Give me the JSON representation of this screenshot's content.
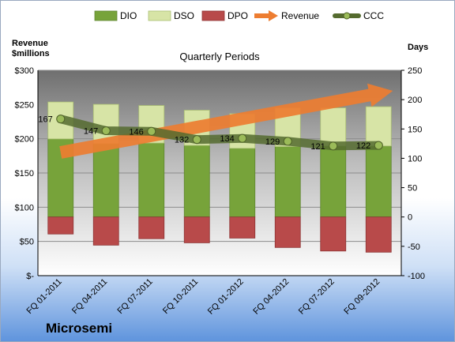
{
  "chart_data": {
    "type": "bar",
    "subtitle": "Quarterly Periods",
    "company": "Microsemi",
    "left_axis_title": [
      "Revenue",
      "$millions"
    ],
    "right_axis_title": "Days",
    "left_ticks": [
      "$-",
      "$50",
      "$100",
      "$150",
      "$200",
      "$250",
      "$300"
    ],
    "right_ticks": [
      "-100",
      "-50",
      "0",
      "50",
      "100",
      "150",
      "200",
      "250"
    ],
    "left_ylim": [
      0,
      300
    ],
    "right_ylim": [
      -100,
      250
    ],
    "categories": [
      "FQ 01-2011",
      "FQ 04-2011",
      "FQ 07-2011",
      "FQ 10-2011",
      "FQ 01-2012",
      "FQ 04-2012",
      "FQ 07-2012",
      "FQ 09-2012"
    ],
    "legend": [
      {
        "name": "DIO",
        "kind": "bar",
        "color": "#77a33a"
      },
      {
        "name": "DSO",
        "kind": "bar",
        "color": "#d7e4a6"
      },
      {
        "name": "DPO",
        "kind": "bar",
        "color": "#b84a4a"
      },
      {
        "name": "Revenue",
        "kind": "arrow",
        "color": "#ed7d31"
      },
      {
        "name": "CCC",
        "kind": "line",
        "color": "#556b2f"
      }
    ],
    "series": [
      {
        "name": "DIO",
        "axis": "right",
        "values": [
          133,
          125,
          126,
          122,
          117,
          120,
          121,
          121
        ]
      },
      {
        "name": "DSO",
        "axis": "right",
        "values": [
          63,
          67,
          64,
          60,
          59,
          66,
          65,
          67
        ]
      },
      {
        "name": "DPO",
        "axis": "right",
        "values": [
          -29,
          -48,
          -37,
          -44,
          -36,
          -52,
          -58,
          -60
        ]
      },
      {
        "name": "Revenue",
        "axis": "left",
        "start": 180,
        "end": 270
      },
      {
        "name": "CCC",
        "axis": "right",
        "values": [
          167,
          147,
          146,
          132,
          134,
          129,
          121,
          122
        ]
      }
    ],
    "ccc_labels": [
      "167",
      "147",
      "146",
      "132",
      "134",
      "129",
      "121",
      "122"
    ]
  }
}
